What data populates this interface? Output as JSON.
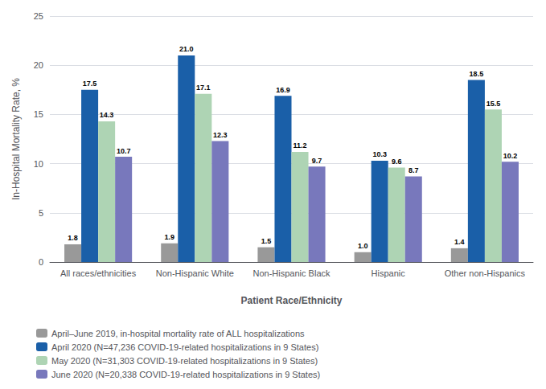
{
  "chart_data": {
    "type": "bar",
    "categories": [
      "All races/ethnicities",
      "Non-Hispanic White",
      "Non-Hispanic Black",
      "Hispanic",
      "Other non-Hispanics"
    ],
    "series": [
      {
        "name": "April–June 2019, in-hospital mortality rate of ALL hospitalizations",
        "color": "#999999",
        "values": [
          1.8,
          1.9,
          1.5,
          1.0,
          1.4
        ],
        "value_labels": [
          "1.8",
          "1.9",
          "1.5",
          "1.0",
          "1.4"
        ]
      },
      {
        "name": "April 2020 (N=47,236 COVID-19-related hospitalizations in 9 States)",
        "color": "#1a5fa8",
        "values": [
          17.5,
          21.0,
          16.9,
          10.3,
          18.5
        ],
        "value_labels": [
          "17.5",
          "21.0",
          "16.9",
          "10.3",
          "18.5"
        ]
      },
      {
        "name": "May 2020 (N=31,303 COVID-19-related hospitalizations in 9 States)",
        "color": "#aed4b4",
        "values": [
          14.3,
          17.1,
          11.2,
          9.6,
          15.5
        ],
        "value_labels": [
          "14.3",
          "17.1",
          "11.2",
          "9.6",
          "15.5"
        ]
      },
      {
        "name": "June 2020 (N=20,338 COVID-19-related hospitalizations in 9 States)",
        "color": "#7878bc",
        "values": [
          10.7,
          12.3,
          9.7,
          8.7,
          10.2
        ],
        "value_labels": [
          "10.7",
          "12.3",
          "9.7",
          "8.7",
          "10.2"
        ]
      }
    ],
    "xlabel": "Patient Race/Ethnicity",
    "ylabel": "In-Hospital Mortality Rate, %",
    "ylim": [
      0,
      25
    ],
    "yticks": [
      0,
      5,
      10,
      15,
      20,
      25
    ],
    "grid": true,
    "legend": "lower left",
    "data_labels": true
  }
}
